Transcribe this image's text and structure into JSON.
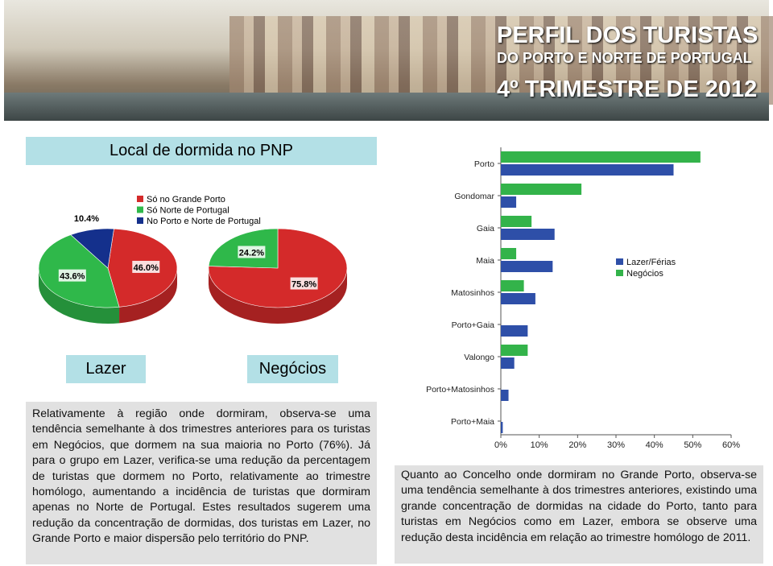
{
  "header": {
    "title": "PERFIL DOS TURISTAS",
    "subtitle": "DO PORTO E NORTE DE PORTUGAL",
    "period": "4º TRIMESTRE DE 2012"
  },
  "section_title": "Local de dormida no PNP",
  "chart_data": [
    {
      "type": "pie",
      "title": "Lazer",
      "categories": [
        "Só no Grande Porto",
        "Só Norte de Portugal",
        "No Porto e Norte de Portugal"
      ],
      "values": [
        46.0,
        43.6,
        10.4
      ],
      "value_labels": [
        "46.0%",
        "43.6%",
        "10.4%"
      ],
      "colors": [
        "#d42a2a",
        "#2fb84a",
        "#14308c"
      ]
    },
    {
      "type": "pie",
      "title": "Negócios",
      "values": [
        75.8,
        24.2
      ],
      "value_labels": [
        "75.8%",
        "24.2%"
      ],
      "colors": [
        "#d42a2a",
        "#2fb84a"
      ]
    },
    {
      "type": "hbar",
      "categories": [
        "Porto",
        "Gondomar",
        "Gaia",
        "Maia",
        "Matosinhos",
        "Porto+Gaia",
        "Valongo",
        "Porto+Matosinhos",
        "Porto+Maia"
      ],
      "series": [
        {
          "name": "Negócios",
          "color": "#33b34a",
          "values": [
            52,
            21,
            8,
            4,
            6,
            0,
            7,
            0,
            0
          ]
        },
        {
          "name": "Lazer/Férias",
          "color": "#2e4fa8",
          "values": [
            45,
            4,
            14,
            13.5,
            9,
            7,
            3.5,
            2,
            0.5
          ]
        }
      ],
      "xlim": [
        0,
        60
      ],
      "xticks": [
        {
          "value": 0,
          "label": "0%"
        },
        {
          "value": 10,
          "label": "10%"
        },
        {
          "value": 20,
          "label": "20%"
        },
        {
          "value": 30,
          "label": "30%"
        },
        {
          "value": 40,
          "label": "40%"
        },
        {
          "value": 50,
          "label": "50%"
        },
        {
          "value": 60,
          "label": "60%"
        }
      ]
    }
  ],
  "left_text": "Relativamente à região onde dormiram, observa-se uma tendência semelhante à dos trimestres anteriores para os turistas em Negócios, que dormem na sua maioria no Porto (76%). Já para o grupo em Lazer, verifica-se uma redução da percentagem de turistas que dormem no Porto, relativamente ao trimestre homólogo, aumentando a incidência de turistas que dormiram apenas no Norte de Portugal. Estes resultados sugerem uma redução da concentração de dormidas, dos turistas em Lazer, no Grande Porto e maior dispersão pelo território do PNP.",
  "right_text": "Quanto ao Concelho onde dormiram no Grande Porto, observa-se uma tendência semelhante à dos trimestres anteriores, existindo uma grande concentração de dormidas na cidade do Porto, tanto para turistas em Negócios como em Lazer, embora se observe uma redução desta incidência em relação ao trimestre homólogo de 2011."
}
